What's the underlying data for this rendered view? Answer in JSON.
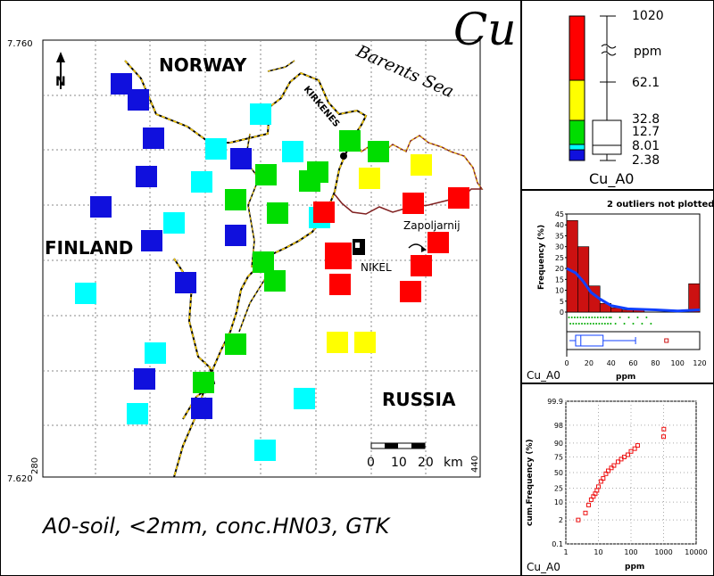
{
  "element": "Cu",
  "caption": "A0-soil, <2mm, conc.HN03, GTK",
  "map": {
    "northing_top": "7.760",
    "northing_bottom": "7.620",
    "easting_left": "280",
    "easting_right": "440",
    "north_label": "N",
    "labels": {
      "norway": "NORWAY",
      "finland": "FINLAND",
      "russia": "RUSSIA",
      "barents": "Barents Sea",
      "kirkenes": "KIRKENES",
      "nikel": "NIKEL",
      "zapoljarnij": "Zapoljarnij"
    },
    "scalebar": {
      "ticks": [
        "0",
        "10",
        "20"
      ],
      "unit": "km"
    },
    "colors": {
      "blue": "#1010dd",
      "cyan": "#00ffff",
      "green": "#00dd00",
      "yellow": "#ffff00",
      "red": "#ff0000"
    }
  },
  "legend": {
    "unit": "ppm",
    "values": [
      "1020",
      "62.1",
      "32.8",
      "12.7",
      "8.01",
      "2.38"
    ],
    "label": "Cu_A0"
  },
  "histogram": {
    "note": "2 outliers not plotted",
    "ylabel": "Frequency (%)",
    "xlabel": "ppm",
    "label": "Cu_A0"
  },
  "cumulative": {
    "ylabel": "cum.Frequency (%)",
    "xlabel": "ppm",
    "label": "Cu_A0"
  },
  "chart_data": [
    {
      "type": "bar",
      "title": "",
      "note": "2 outliers not plotted",
      "xlabel": "ppm",
      "ylabel": "Frequency (%)",
      "xlim": [
        0,
        120
      ],
      "ylim": [
        0,
        45
      ],
      "xticks": [
        0,
        20,
        40,
        60,
        80,
        100,
        120
      ],
      "yticks": [
        0,
        5,
        10,
        15,
        20,
        25,
        30,
        35,
        40,
        45
      ],
      "bins": [
        [
          0,
          10,
          42
        ],
        [
          10,
          20,
          30
        ],
        [
          20,
          30,
          12
        ],
        [
          30,
          40,
          4
        ],
        [
          40,
          50,
          2
        ],
        [
          50,
          60,
          1
        ],
        [
          60,
          70,
          1
        ],
        [
          70,
          80,
          0
        ],
        [
          80,
          90,
          0
        ],
        [
          90,
          100,
          0
        ],
        [
          100,
          110,
          0
        ],
        [
          110,
          120,
          13
        ]
      ],
      "density_curve": [
        [
          0,
          20
        ],
        [
          8,
          18
        ],
        [
          15,
          14
        ],
        [
          22,
          9
        ],
        [
          30,
          6
        ],
        [
          40,
          3
        ],
        [
          55,
          1.5
        ],
        [
          80,
          1
        ],
        [
          100,
          0.5
        ],
        [
          120,
          1
        ]
      ],
      "boxplot": {
        "min": 2.38,
        "q1": 8.01,
        "median": 12.7,
        "q3": 32.8,
        "whisker_high": 62.1,
        "outlier": 90
      }
    },
    {
      "type": "scatter",
      "title": "",
      "xlabel": "ppm",
      "ylabel": "cum.Frequency (%)",
      "x_scale": "log",
      "y_scale": "probability",
      "xticks": [
        "1",
        "10",
        "100",
        "1000",
        "10000"
      ],
      "yticks": [
        "0.1",
        "2",
        "10",
        "25",
        "50",
        "75",
        "90",
        "98",
        "99.9"
      ],
      "x": [
        2.4,
        4,
        5,
        6,
        7,
        8,
        9,
        10,
        12,
        14,
        17,
        20,
        25,
        30,
        40,
        50,
        62,
        80,
        100,
        130,
        160,
        1000,
        1020
      ],
      "y": [
        2,
        4,
        8,
        12,
        15,
        18,
        22,
        27,
        35,
        40,
        48,
        53,
        58,
        62,
        68,
        72,
        75,
        78,
        82,
        85,
        88,
        94,
        97
      ]
    }
  ]
}
